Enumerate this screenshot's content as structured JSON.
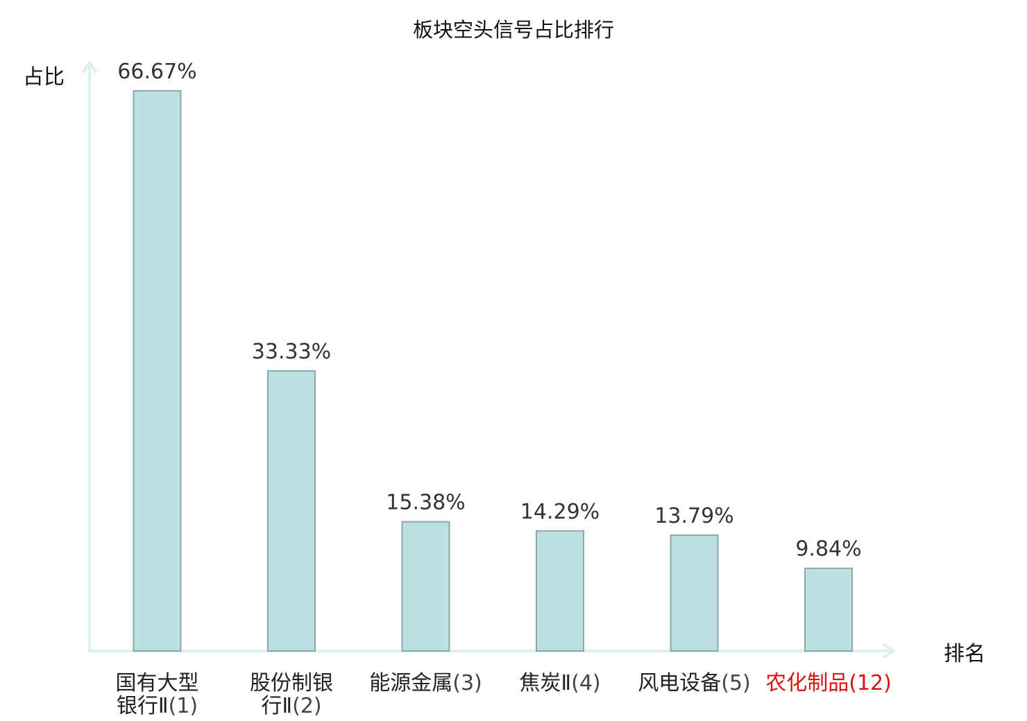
{
  "chart_data": {
    "type": "bar",
    "title": "板块空头信号占比排行",
    "xlabel": "排名",
    "ylabel": "占比",
    "ylim": [
      0,
      70
    ],
    "grid": false,
    "categories": [
      {
        "name_lines": [
          "国有大型",
          "银行Ⅱ"
        ],
        "rank": "(1)",
        "highlight": false
      },
      {
        "name_lines": [
          "股份制银",
          "行Ⅱ"
        ],
        "rank": "(2)",
        "highlight": false
      },
      {
        "name_lines": [
          "能源金属"
        ],
        "rank": "(3)",
        "highlight": false
      },
      {
        "name_lines": [
          "焦炭Ⅱ"
        ],
        "rank": "(4)",
        "highlight": false
      },
      {
        "name_lines": [
          "风电设备"
        ],
        "rank": "(5)",
        "highlight": false
      },
      {
        "name_lines": [
          "农化制品"
        ],
        "rank": "(12)",
        "highlight": true
      }
    ],
    "values": [
      66.67,
      33.33,
      15.38,
      14.29,
      13.79,
      9.84
    ],
    "value_labels": [
      "66.67%",
      "33.33%",
      "15.38%",
      "14.29%",
      "13.79%",
      "9.84%"
    ]
  },
  "colors": {
    "bar_fill": "#bde0e3",
    "bar_stroke": "#86a9ad",
    "axis": "#dcf0ee",
    "label_text": "#222222",
    "rank_text": "#444444",
    "highlight": "#dd1111"
  }
}
